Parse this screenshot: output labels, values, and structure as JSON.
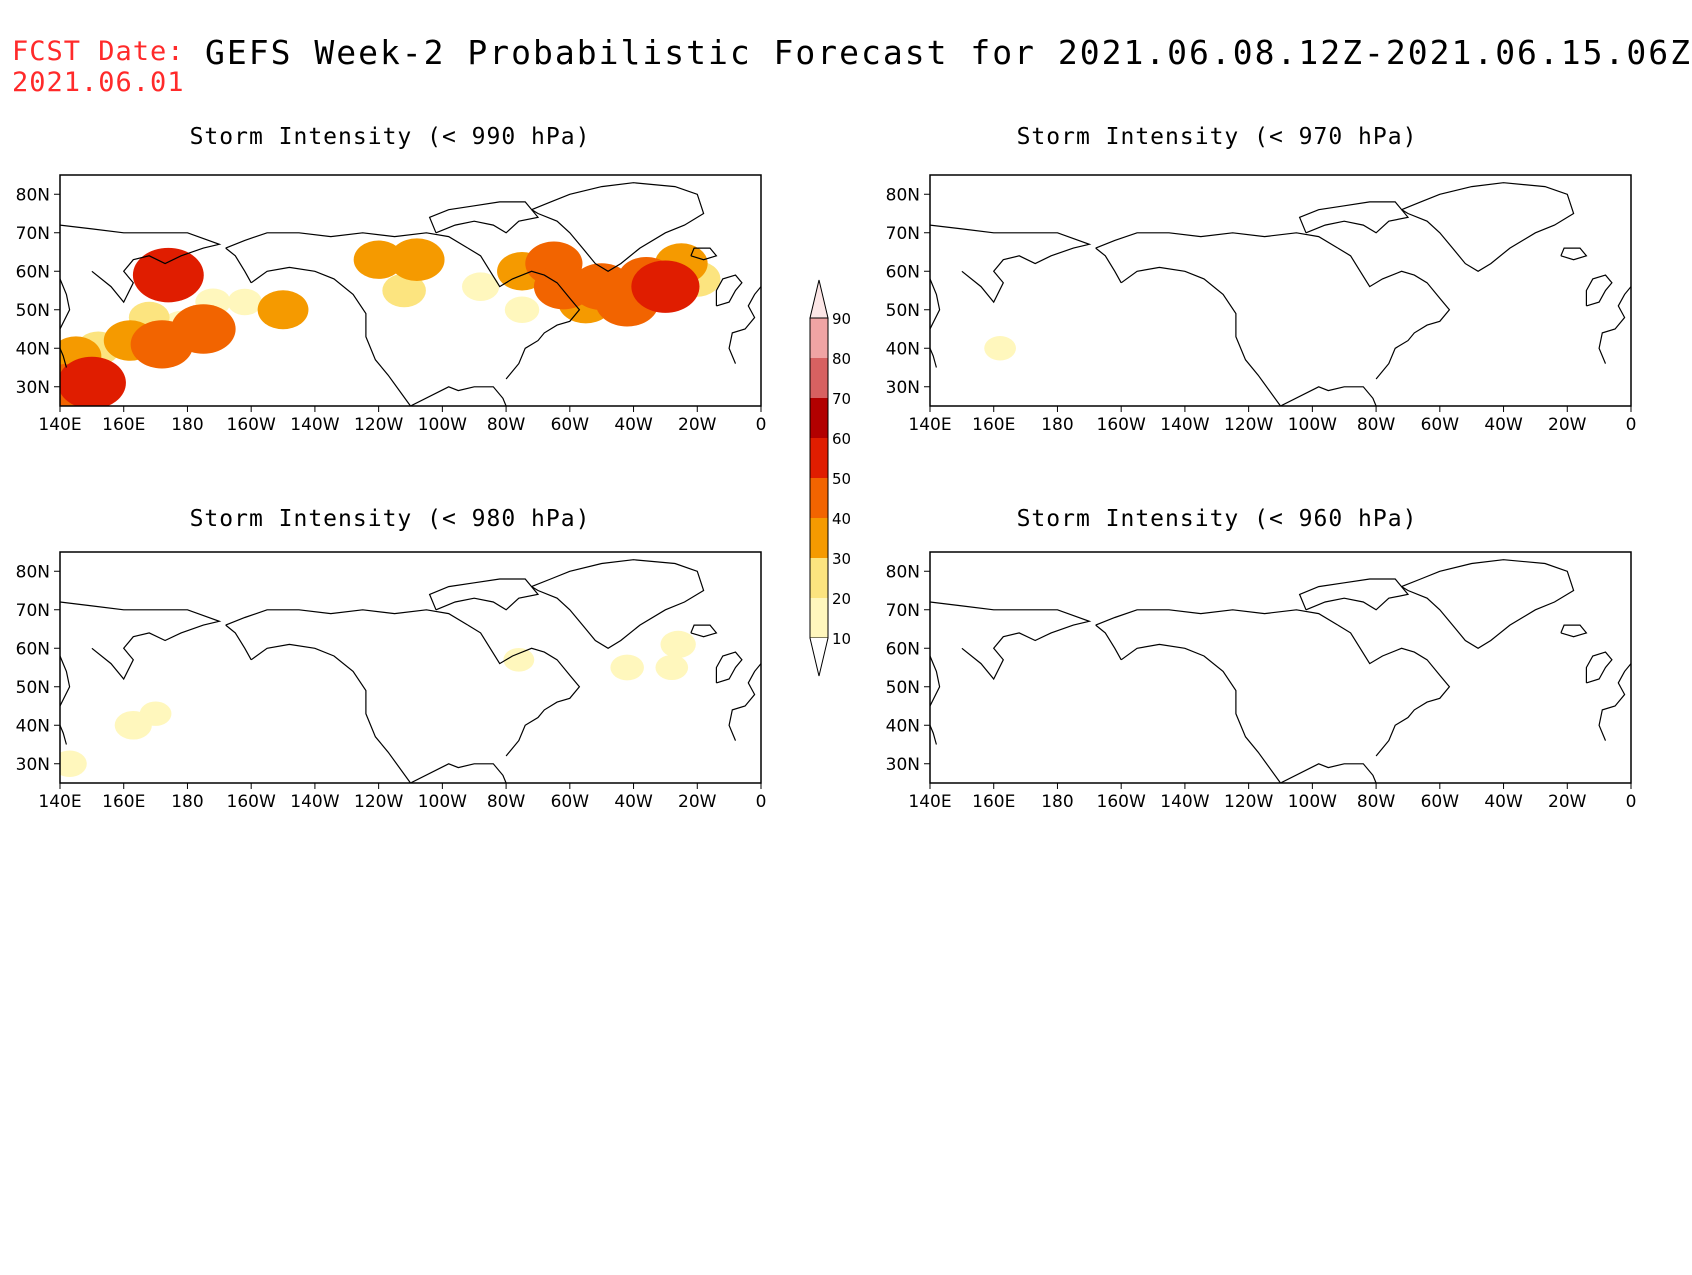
{
  "header": {
    "fcst_label": "FCST Date:",
    "fcst_date": "2021.06.01",
    "title": "GEFS Week-2 Probabilistic Forecast for 2021.06.08.12Z-2021.06.15.06Z"
  },
  "colors": {
    "fcst_date": "#ff2a2a",
    "scale": [
      "#fff7bd",
      "#fce47f",
      "#f59a00",
      "#f26400",
      "#e01d00",
      "#b20000",
      "#d76161",
      "#f0a4a4",
      "#fce6e6"
    ]
  },
  "axes": {
    "lat_labels": [
      "80N",
      "70N",
      "60N",
      "50N",
      "40N",
      "30N"
    ],
    "lon_labels": [
      "140E",
      "160E",
      "180",
      "160W",
      "140W",
      "120W",
      "100W",
      "80W",
      "60W",
      "40W",
      "20W",
      "0"
    ]
  },
  "colorbar": {
    "labels": [
      "90",
      "80",
      "70",
      "60",
      "50",
      "40",
      "30",
      "20",
      "10"
    ]
  },
  "panels": [
    {
      "id": "p990",
      "title": "Storm Intensity (< 990 hPa)"
    },
    {
      "id": "p970",
      "title": "Storm Intensity (< 970 hPa)"
    },
    {
      "id": "p980",
      "title": "Storm Intensity (< 980 hPa)"
    },
    {
      "id": "p960",
      "title": "Storm Intensity (< 960 hPa)"
    }
  ],
  "probability_fields": {
    "p990": [
      {
        "lon": 142,
        "lat": 30,
        "p": 42
      },
      {
        "lon": 146,
        "lat": 32,
        "p": 38
      },
      {
        "lon": 150,
        "lat": 31,
        "p": 52
      },
      {
        "lon": 145,
        "lat": 38,
        "p": 33
      },
      {
        "lon": 152,
        "lat": 40,
        "p": 25
      },
      {
        "lon": 162,
        "lat": 42,
        "p": 35
      },
      {
        "lon": 172,
        "lat": 41,
        "p": 46
      },
      {
        "lon": 168,
        "lat": 48,
        "p": 22
      },
      {
        "lon": 178,
        "lat": 46,
        "p": 18
      },
      {
        "lon": 174,
        "lat": 59,
        "p": 55
      },
      {
        "lon": 185,
        "lat": 45,
        "p": 48
      },
      {
        "lon": 188,
        "lat": 52,
        "p": 16
      },
      {
        "lon": 198,
        "lat": 52,
        "p": 15
      },
      {
        "lon": 210,
        "lat": 50,
        "p": 33
      },
      {
        "lon": 240,
        "lat": 63,
        "p": 32
      },
      {
        "lon": 252,
        "lat": 63,
        "p": 38
      },
      {
        "lon": 248,
        "lat": 55,
        "p": 25
      },
      {
        "lon": 272,
        "lat": 56,
        "p": 18
      },
      {
        "lon": 285,
        "lat": 60,
        "p": 32
      },
      {
        "lon": 295,
        "lat": 62,
        "p": 40
      },
      {
        "lon": 298,
        "lat": 56,
        "p": 42
      },
      {
        "lon": 305,
        "lat": 52,
        "p": 38
      },
      {
        "lon": 310,
        "lat": 56,
        "p": 44
      },
      {
        "lon": 318,
        "lat": 52,
        "p": 47
      },
      {
        "lon": 324,
        "lat": 58,
        "p": 40
      },
      {
        "lon": 330,
        "lat": 56,
        "p": 52
      },
      {
        "lon": 335,
        "lat": 62,
        "p": 35
      },
      {
        "lon": 340,
        "lat": 58,
        "p": 28
      },
      {
        "lon": 285,
        "lat": 50,
        "p": 15
      }
    ],
    "p980": [
      {
        "lon": 143,
        "lat": 30,
        "p": 15
      },
      {
        "lon": 163,
        "lat": 40,
        "p": 18
      },
      {
        "lon": 170,
        "lat": 43,
        "p": 12
      },
      {
        "lon": 318,
        "lat": 55,
        "p": 14
      },
      {
        "lon": 332,
        "lat": 55,
        "p": 13
      },
      {
        "lon": 334,
        "lat": 61,
        "p": 16
      },
      {
        "lon": 284,
        "lat": 57,
        "p": 11
      }
    ],
    "p970": [
      {
        "lon": 162,
        "lat": 40,
        "p": 12
      }
    ],
    "p960": []
  }
}
